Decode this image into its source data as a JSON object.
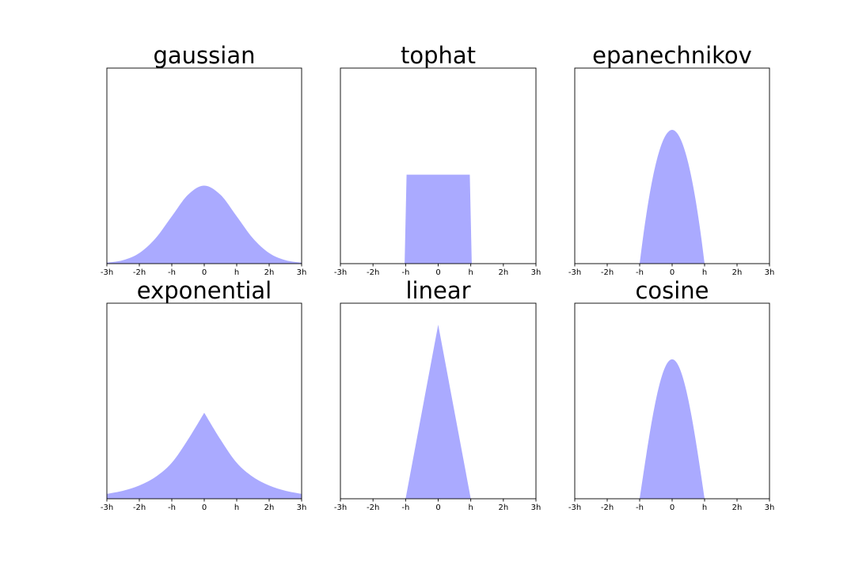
{
  "figure": {
    "background": "#ffffff"
  },
  "chart_data": [
    {
      "type": "area",
      "title": "gaussian",
      "kernel": "gaussian",
      "xlabel": "",
      "ylabel": "",
      "xlim": [
        -3,
        3
      ],
      "ylim": [
        0,
        1.0
      ],
      "xticks": [
        -3,
        -2,
        -1,
        0,
        1,
        2,
        3
      ],
      "xtick_labels": [
        "-3h",
        "-2h",
        "-h",
        "0",
        "h",
        "2h",
        "3h"
      ],
      "yticks": [],
      "fill_color": "#aaaaff",
      "x": [
        -3.0,
        -2.5,
        -2.0,
        -1.5,
        -1.0,
        -0.5,
        0.0,
        0.5,
        1.0,
        1.5,
        2.0,
        2.5,
        3.0
      ],
      "y": [
        0.0044,
        0.0175,
        0.054,
        0.1295,
        0.242,
        0.352,
        0.399,
        0.352,
        0.242,
        0.1295,
        0.054,
        0.0175,
        0.0044
      ]
    },
    {
      "type": "area",
      "title": "tophat",
      "kernel": "tophat",
      "xlabel": "",
      "ylabel": "",
      "xlim": [
        -3,
        3
      ],
      "ylim": [
        0,
        1.0
      ],
      "xticks": [
        -3,
        -2,
        -1,
        0,
        1,
        2,
        3
      ],
      "xtick_labels": [
        "-3h",
        "-2h",
        "-h",
        "0",
        "h",
        "2h",
        "3h"
      ],
      "yticks": [],
      "fill_color": "#aaaaff",
      "x": [
        -1.03,
        -0.97,
        0.97,
        1.03
      ],
      "y": [
        0.0,
        0.455,
        0.455,
        0.0
      ]
    },
    {
      "type": "area",
      "title": "epanechnikov",
      "kernel": "epanechnikov",
      "xlabel": "",
      "ylabel": "",
      "xlim": [
        -3,
        3
      ],
      "ylim": [
        0,
        1.0
      ],
      "xticks": [
        -3,
        -2,
        -1,
        0,
        1,
        2,
        3
      ],
      "xtick_labels": [
        "-3h",
        "-2h",
        "-h",
        "0",
        "h",
        "2h",
        "3h"
      ],
      "yticks": [],
      "fill_color": "#aaaaff",
      "x": [
        -1.0,
        -0.9,
        -0.8,
        -0.7,
        -0.6,
        -0.5,
        -0.4,
        -0.3,
        -0.2,
        -0.1,
        0.0,
        0.1,
        0.2,
        0.3,
        0.4,
        0.5,
        0.6,
        0.7,
        0.8,
        0.9,
        1.0
      ],
      "y": [
        0.0,
        0.1296,
        0.2456,
        0.348,
        0.4368,
        0.512,
        0.5736,
        0.6216,
        0.656,
        0.6768,
        0.684,
        0.6768,
        0.656,
        0.6216,
        0.5736,
        0.512,
        0.4368,
        0.348,
        0.2456,
        0.1296,
        0.0
      ]
    },
    {
      "type": "area",
      "title": "exponential",
      "kernel": "exponential",
      "xlabel": "",
      "ylabel": "",
      "xlim": [
        -3,
        3
      ],
      "ylim": [
        0,
        1.0
      ],
      "xticks": [
        -3,
        -2,
        -1,
        0,
        1,
        2,
        3
      ],
      "xtick_labels": [
        "-3h",
        "-2h",
        "-h",
        "0",
        "h",
        "2h",
        "3h"
      ],
      "yticks": [],
      "fill_color": "#aaaaff",
      "x": [
        -3.0,
        -2.5,
        -2.0,
        -1.5,
        -1.0,
        -0.5,
        0.0,
        0.5,
        1.0,
        1.5,
        2.0,
        2.5,
        3.0
      ],
      "y": [
        0.0249,
        0.041,
        0.0677,
        0.1116,
        0.184,
        0.3033,
        0.44,
        0.3033,
        0.184,
        0.1116,
        0.0677,
        0.041,
        0.0249
      ]
    },
    {
      "type": "area",
      "title": "linear",
      "kernel": "linear",
      "xlabel": "",
      "ylabel": "",
      "xlim": [
        -3,
        3
      ],
      "ylim": [
        0,
        1.0
      ],
      "xticks": [
        -3,
        -2,
        -1,
        0,
        1,
        2,
        3
      ],
      "xtick_labels": [
        "-3h",
        "-2h",
        "-h",
        "0",
        "h",
        "2h",
        "3h"
      ],
      "yticks": [],
      "fill_color": "#aaaaff",
      "x": [
        -1.0,
        0.0,
        1.0
      ],
      "y": [
        0.0,
        0.89,
        0.0
      ]
    },
    {
      "type": "area",
      "title": "cosine",
      "kernel": "cosine",
      "xlabel": "",
      "ylabel": "",
      "xlim": [
        -3,
        3
      ],
      "ylim": [
        0,
        1.0
      ],
      "xticks": [
        -3,
        -2,
        -1,
        0,
        1,
        2,
        3
      ],
      "xtick_labels": [
        "-3h",
        "-2h",
        "-h",
        "0",
        "h",
        "2h",
        "3h"
      ],
      "yticks": [],
      "fill_color": "#aaaaff",
      "x": [
        -1.0,
        -0.9,
        -0.8,
        -0.7,
        -0.6,
        -0.5,
        -0.4,
        -0.3,
        -0.2,
        -0.1,
        0.0,
        0.1,
        0.2,
        0.3,
        0.4,
        0.5,
        0.6,
        0.7,
        0.8,
        0.9,
        1.0
      ],
      "y": [
        0.0,
        0.1118,
        0.2209,
        0.3247,
        0.4204,
        0.5056,
        0.5781,
        0.6363,
        0.6785,
        0.7043,
        0.713,
        0.7043,
        0.6785,
        0.6363,
        0.5781,
        0.5056,
        0.4204,
        0.3247,
        0.2209,
        0.1118,
        0.0
      ]
    }
  ]
}
